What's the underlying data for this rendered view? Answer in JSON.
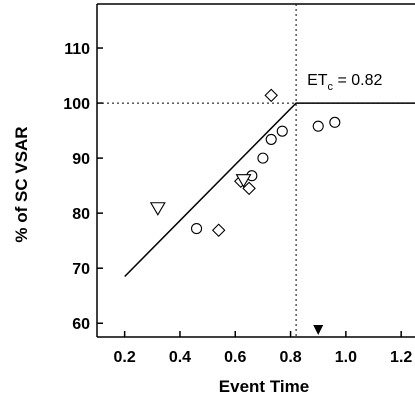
{
  "chart_data": {
    "type": "scatter",
    "xlabel": "Event Time",
    "ylabel": "% of SC VSAR",
    "xlim": [
      0.1,
      1.25
    ],
    "ylim": [
      57.5,
      118
    ],
    "x_ticks": [
      0.2,
      0.4,
      0.6,
      0.8,
      1.0,
      1.2
    ],
    "x_tick_labels": [
      "0.2",
      "0.4",
      "0.6",
      "0.8",
      "1.0",
      "1.2"
    ],
    "y_ticks": [
      60,
      70,
      80,
      90,
      100,
      110
    ],
    "y_tick_labels": [
      "60",
      "70",
      "80",
      "90",
      "100",
      "110"
    ],
    "grid": false,
    "annotation": {
      "prefix": "ET",
      "subscript": "c",
      "suffix": " = 0.82",
      "x": 0.82
    },
    "reference_lines": {
      "horizontal_y": 100,
      "vertical_x": 0.82
    },
    "fit_line": [
      {
        "x": 0.2,
        "y": 68.5
      },
      {
        "x": 0.82,
        "y": 100
      },
      {
        "x": 1.25,
        "y": 100
      }
    ],
    "arrow_marker_x": 0.9,
    "series": [
      {
        "marker": "circle",
        "points": [
          {
            "x": 0.46,
            "y": 77.2
          },
          {
            "x": 0.66,
            "y": 86.8
          },
          {
            "x": 0.7,
            "y": 90.0
          },
          {
            "x": 0.73,
            "y": 93.4
          },
          {
            "x": 0.77,
            "y": 94.9
          },
          {
            "x": 0.9,
            "y": 95.8
          },
          {
            "x": 0.96,
            "y": 96.5
          }
        ]
      },
      {
        "marker": "diamond",
        "points": [
          {
            "x": 0.54,
            "y": 76.9
          },
          {
            "x": 0.62,
            "y": 85.8
          },
          {
            "x": 0.65,
            "y": 84.5
          },
          {
            "x": 0.73,
            "y": 101.4
          }
        ]
      },
      {
        "marker": "triangle-down",
        "points": [
          {
            "x": 0.32,
            "y": 80.8
          },
          {
            "x": 0.63,
            "y": 85.9
          }
        ]
      }
    ]
  }
}
